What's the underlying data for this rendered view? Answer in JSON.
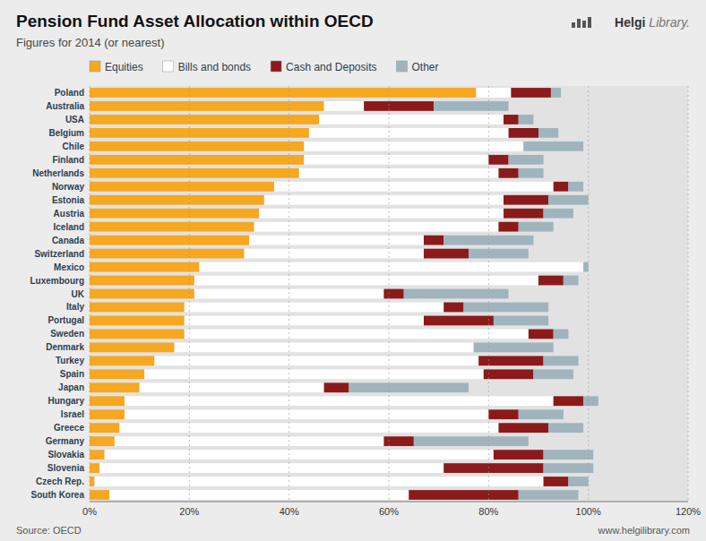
{
  "chart_data": {
    "type": "bar",
    "orientation": "horizontal",
    "stacked": true,
    "title": "Pension Fund Asset Allocation within OECD",
    "subtitle": "Figures for 2014 (or nearest)",
    "annotations": [
      "Source: OECD",
      "www.helgilibrary.com",
      "Helgi",
      "Library."
    ],
    "categories": [
      "Poland",
      "Australia",
      "USA",
      "Belgium",
      "Chile",
      "Finland",
      "Netherlands",
      "Norway",
      "Estonia",
      "Austria",
      "Iceland",
      "Canada",
      "Switzerland",
      "Mexico",
      "Luxembourg",
      "UK",
      "Italy",
      "Portugal",
      "Sweden",
      "Denmark",
      "Turkey",
      "Spain",
      "Japan",
      "Hungary",
      "Israel",
      "Greece",
      "Germany",
      "Slovakia",
      "Slovenia",
      "Czech Rep.",
      "South Korea"
    ],
    "series": [
      {
        "name": "Equities",
        "color": "#F5A820",
        "values": [
          0.775,
          0.47,
          0.46,
          0.44,
          0.43,
          0.43,
          0.42,
          0.37,
          0.35,
          0.34,
          0.33,
          0.32,
          0.31,
          0.22,
          0.21,
          0.21,
          0.19,
          0.19,
          0.19,
          0.17,
          0.13,
          0.11,
          0.1,
          0.07,
          0.07,
          0.06,
          0.05,
          0.03,
          0.02,
          0.01,
          0.04
        ]
      },
      {
        "name": "Bills and bonds",
        "color": "#FFFFFF",
        "values": [
          0.07,
          0.08,
          0.37,
          0.4,
          0.44,
          0.37,
          0.4,
          0.56,
          0.48,
          0.49,
          0.49,
          0.35,
          0.36,
          0.77,
          0.69,
          0.38,
          0.52,
          0.48,
          0.69,
          0.6,
          0.65,
          0.68,
          0.37,
          0.86,
          0.73,
          0.76,
          0.54,
          0.78,
          0.69,
          0.9,
          0.6
        ]
      },
      {
        "name": "Cash and Deposits",
        "color": "#8B1A1A",
        "values": [
          0.08,
          0.14,
          0.03,
          0.06,
          0.0,
          0.04,
          0.04,
          0.03,
          0.09,
          0.08,
          0.04,
          0.04,
          0.09,
          0.0,
          0.05,
          0.04,
          0.04,
          0.14,
          0.05,
          0.0,
          0.13,
          0.1,
          0.05,
          0.06,
          0.06,
          0.1,
          0.06,
          0.1,
          0.2,
          0.05,
          0.22
        ]
      },
      {
        "name": "Other",
        "color": "#A0B4BE",
        "values": [
          0.02,
          0.15,
          0.03,
          0.04,
          0.12,
          0.07,
          0.05,
          0.03,
          0.08,
          0.06,
          0.07,
          0.18,
          0.12,
          0.01,
          0.03,
          0.21,
          0.17,
          0.11,
          0.03,
          0.16,
          0.07,
          0.08,
          0.24,
          0.03,
          0.09,
          0.07,
          0.23,
          0.1,
          0.1,
          0.04,
          0.12
        ]
      }
    ],
    "xlim": [
      0,
      1.2
    ],
    "xticks": [
      {
        "value": 0,
        "label": "0%"
      },
      {
        "value": 0.2,
        "label": "20%"
      },
      {
        "value": 0.4,
        "label": "40%"
      },
      {
        "value": 0.6,
        "label": "60%"
      },
      {
        "value": 0.8,
        "label": "80%"
      },
      {
        "value": 1.0,
        "label": "100%"
      },
      {
        "value": 1.2,
        "label": "120%"
      }
    ],
    "grid": true,
    "legend": "top"
  }
}
